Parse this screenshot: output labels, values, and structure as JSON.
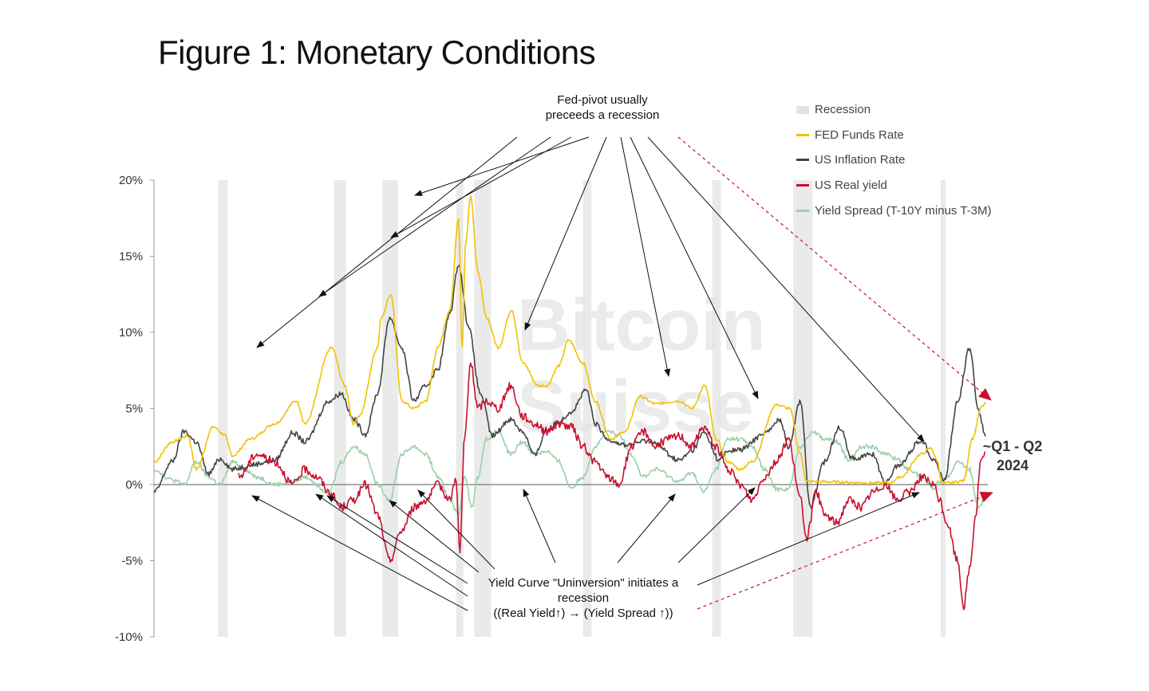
{
  "title": "Figure 1: Monetary Conditions",
  "watermark": {
    "line1": "Bitcoin",
    "line2": "Suisse"
  },
  "legend": [
    {
      "key": "recession",
      "label": "Recession",
      "color": "#e3e3e3"
    },
    {
      "key": "fed",
      "label": "FED Funds Rate",
      "color": "#f2c200"
    },
    {
      "key": "inflation",
      "label": "US Inflation Rate",
      "color": "#444444"
    },
    {
      "key": "real",
      "label": "US Real yield",
      "color": "#c8102e"
    },
    {
      "key": "spread",
      "label": "Yield Spread (T-10Y minus T-3M)",
      "color": "#9ccfa8"
    }
  ],
  "annotations": {
    "fed_pivot_line1": "Fed-pivot usually",
    "fed_pivot_line2": "preceeds a recession",
    "uninversion_line1": "Yield Curve \"Uninversion\" initiates a",
    "uninversion_line2": "recession",
    "uninversion_line3": "((Real Yield↑) → (Yield Spread ↑))",
    "forecast_line1": "~Q1 - Q2",
    "forecast_line2": "2024"
  },
  "chart_data": {
    "type": "line",
    "x_range": [
      1955,
      2024
    ],
    "ylim": [
      -10,
      20
    ],
    "yticks": [
      -10,
      -5,
      0,
      5,
      10,
      15,
      20
    ],
    "ytick_labels": [
      "-10%",
      "-5%",
      "0%",
      "5%",
      "10%",
      "15%",
      "20%"
    ],
    "recessions": [
      [
        1960.3,
        1961.1
      ],
      [
        1969.9,
        1970.9
      ],
      [
        1973.9,
        1975.2
      ],
      [
        1980.0,
        1980.6
      ],
      [
        1981.5,
        1982.9
      ],
      [
        1990.5,
        1991.2
      ],
      [
        2001.2,
        2001.9
      ],
      [
        2007.9,
        2009.5
      ],
      [
        2020.1,
        2020.4
      ]
    ],
    "series": [
      {
        "name": "FED Funds Rate",
        "color": "#f2c200",
        "x": [
          1955,
          1956.5,
          1957.8,
          1958.5,
          1959.9,
          1960.8,
          1961.5,
          1963,
          1965,
          1966.8,
          1967.5,
          1969.7,
          1970.8,
          1971.5,
          1972,
          1973.5,
          1973.8,
          1974.6,
          1975.5,
          1976.5,
          1977.5,
          1978.5,
          1979.5,
          1980.2,
          1980.5,
          1980.8,
          1981.2,
          1981.8,
          1982.5,
          1983.5,
          1984.6,
          1985.5,
          1986.8,
          1987.5,
          1988.5,
          1989.3,
          1990.5,
          1991.5,
          1992.8,
          1994,
          1995.2,
          1996.5,
          1998.5,
          1999.5,
          2000.6,
          2001.5,
          2002.5,
          2003.5,
          2004.5,
          2006.5,
          2007.6,
          2008.5,
          2009,
          2015.8,
          2016.8,
          2018.5,
          2019.3,
          2019.8,
          2020.2,
          2020.5,
          2022,
          2022.7,
          2023.5,
          2023.8
        ],
        "y": [
          1.5,
          2.8,
          3.2,
          1.0,
          3.8,
          3.3,
          1.9,
          3.0,
          4.0,
          5.5,
          4.0,
          9.0,
          6.5,
          4.0,
          4.5,
          9.0,
          11.0,
          12.5,
          5.5,
          5.0,
          5.5,
          9.0,
          11.5,
          17.5,
          9.0,
          16.0,
          19.0,
          14.0,
          11.0,
          9.0,
          11.5,
          8.0,
          6.5,
          6.5,
          7.8,
          9.5,
          8.0,
          5.5,
          3.0,
          3.5,
          5.8,
          5.3,
          5.5,
          5.0,
          6.5,
          3.0,
          1.5,
          1.0,
          1.5,
          5.25,
          5.0,
          2.0,
          0.2,
          0.1,
          0.5,
          2.0,
          2.4,
          1.6,
          0.1,
          0.08,
          0.25,
          3.0,
          5.1,
          5.33
        ]
      },
      {
        "name": "US Inflation Rate",
        "color": "#444444",
        "x": [
          1955,
          1956.5,
          1957.5,
          1958.5,
          1959.5,
          1960.5,
          1961.5,
          1963,
          1965,
          1966.5,
          1967.5,
          1969.5,
          1970.5,
          1971.5,
          1972.5,
          1973.5,
          1974.5,
          1975.5,
          1976.5,
          1977.5,
          1978.5,
          1979.5,
          1980.2,
          1981,
          1982,
          1983,
          1984.5,
          1985.5,
          1986.5,
          1987.5,
          1988.5,
          1989.5,
          1990.8,
          1991.5,
          1992.5,
          1994,
          1996,
          1998.5,
          1999.5,
          2000.5,
          2001.8,
          2002.5,
          2003.5,
          2005.8,
          2006.8,
          2007.5,
          2008.5,
          2009.3,
          2010.5,
          2011.7,
          2012.8,
          2014.5,
          2015.5,
          2016.5,
          2018.5,
          2019.5,
          2020.4,
          2021.5,
          2022.5,
          2023.2,
          2023.8
        ],
        "y": [
          -0.5,
          1.5,
          3.5,
          2.8,
          0.7,
          1.7,
          1.0,
          1.3,
          1.6,
          3.4,
          2.8,
          5.5,
          6.0,
          4.3,
          3.3,
          6.0,
          11.0,
          9.0,
          5.5,
          6.5,
          7.6,
          11.3,
          14.5,
          10.5,
          6.0,
          3.2,
          4.3,
          3.5,
          1.9,
          3.6,
          4.1,
          4.8,
          6.2,
          4.0,
          3.0,
          2.6,
          2.9,
          1.6,
          2.2,
          3.4,
          1.6,
          2.2,
          2.3,
          3.5,
          4.3,
          2.5,
          5.5,
          -1.5,
          1.5,
          3.8,
          1.7,
          2.0,
          0.1,
          1.2,
          2.9,
          1.7,
          0.3,
          5.4,
          9.0,
          5.0,
          3.2
        ]
      },
      {
        "name": "US Real yield",
        "color": "#c8102e",
        "x": [
          1962,
          1963.5,
          1965,
          1966.5,
          1967.5,
          1968.5,
          1969.5,
          1970.5,
          1971.5,
          1972.5,
          1973.5,
          1974.5,
          1975.5,
          1976.5,
          1977.5,
          1978.5,
          1979.5,
          1980,
          1980.3,
          1980.7,
          1981.2,
          1981.8,
          1982.5,
          1983.5,
          1984.5,
          1985.5,
          1986.5,
          1987.5,
          1988.5,
          1989.5,
          1990.5,
          1991.5,
          1992.5,
          1993.5,
          1994.5,
          1995.5,
          1996.5,
          1997.5,
          1998.5,
          1999.5,
          2000.5,
          2001.5,
          2002.5,
          2003.5,
          2004.5,
          2005.5,
          2006.5,
          2007.5,
          2008.5,
          2009,
          2009.8,
          2010.5,
          2011.5,
          2012.5,
          2013.5,
          2014.5,
          2015.5,
          2016.5,
          2017.5,
          2018.5,
          2019.5,
          2020,
          2020.6,
          2021.5,
          2022,
          2022.5,
          2023,
          2023.4,
          2023.8
        ],
        "y": [
          0.5,
          2.0,
          1.5,
          0.0,
          1.0,
          0.5,
          -0.5,
          -1.5,
          -1.0,
          0.0,
          -2.0,
          -5.0,
          -3.0,
          -1.5,
          -1.0,
          0.0,
          -1.0,
          0.5,
          -4.5,
          3.0,
          8.0,
          5.0,
          5.5,
          5.0,
          6.5,
          4.5,
          4.0,
          3.5,
          4.0,
          3.8,
          2.5,
          1.5,
          0.5,
          0.0,
          2.5,
          3.5,
          2.5,
          3.0,
          3.2,
          2.5,
          3.8,
          2.5,
          1.0,
          0.0,
          -1.0,
          0.5,
          1.5,
          3.0,
          -1.0,
          -3.5,
          -0.5,
          -2.0,
          -2.5,
          -1.0,
          -1.5,
          -0.5,
          0.0,
          -1.0,
          -0.5,
          0.5,
          0.0,
          -1.0,
          -2.5,
          -5.0,
          -8.0,
          -5.5,
          -2.0,
          1.5,
          2.0
        ]
      },
      {
        "name": "Yield Spread (T-10Y minus T-3M)",
        "color": "#9ccfa8",
        "x": [
          1955,
          1956.5,
          1957.5,
          1958.5,
          1959.5,
          1960.5,
          1961.5,
          1962.5,
          1963.5,
          1965,
          1966.5,
          1967.5,
          1969.5,
          1970.5,
          1971.5,
          1972.5,
          1973.5,
          1974.5,
          1975.5,
          1976.5,
          1977.5,
          1978.5,
          1979.5,
          1980.2,
          1980.7,
          1981.3,
          1981.8,
          1982.5,
          1983.5,
          1984.5,
          1985.5,
          1986.5,
          1987.5,
          1988.5,
          1989.5,
          1990.5,
          1991.5,
          1992.5,
          1993.5,
          1994.5,
          1995.5,
          1996.5,
          1998.5,
          1999.5,
          2000.5,
          2001.5,
          2002.5,
          2003.5,
          2004.5,
          2005.5,
          2006.5,
          2007.5,
          2008.5,
          2009.5,
          2010.5,
          2011.5,
          2012.5,
          2013.5,
          2014.5,
          2015.5,
          2016.5,
          2017.5,
          2018.5,
          2019.5,
          2020,
          2020.6,
          2021.5,
          2022.5,
          2023.2,
          2023.8
        ],
        "y": [
          1.0,
          0.3,
          0.0,
          1.5,
          0.5,
          0.0,
          1.5,
          1.0,
          0.5,
          0.0,
          0.2,
          0.5,
          -0.5,
          1.5,
          2.5,
          2.0,
          0.0,
          -1.0,
          2.0,
          2.5,
          2.0,
          0.5,
          -1.0,
          -2.0,
          0.5,
          -1.5,
          0.5,
          3.0,
          3.5,
          2.0,
          2.8,
          2.0,
          2.2,
          1.5,
          -0.2,
          0.5,
          2.5,
          3.5,
          3.2,
          2.0,
          0.5,
          1.0,
          0.2,
          0.8,
          -0.5,
          1.0,
          3.0,
          3.0,
          2.5,
          1.0,
          -0.3,
          -0.3,
          2.5,
          3.5,
          3.0,
          2.8,
          1.6,
          2.5,
          2.5,
          2.0,
          1.7,
          1.0,
          0.5,
          -0.2,
          0.2,
          0.5,
          1.5,
          1.0,
          -1.5,
          -1.0
        ]
      }
    ]
  }
}
